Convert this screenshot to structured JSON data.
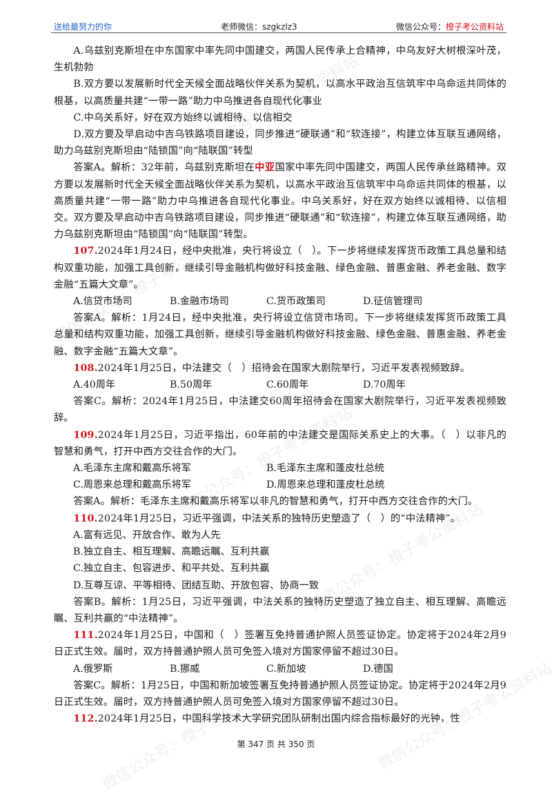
{
  "header": {
    "left": "送给最努力的你",
    "center": "老师微信：szgkzlz3",
    "right_prefix": "微信公众号：",
    "right_highlight": "橙子考公资料站"
  },
  "watermark": {
    "text1": "微信公众号：橙子考公资料站",
    "text2": "微信公众号：橙子考公资料站",
    "text3": "微信公众号：橙子考公资料站",
    "text4": "微信公众号：橙子考公资料站",
    "text5": "微信公众号：橙子考公资料站",
    "text6": "微信公众号：橙子考公资料站"
  },
  "q106": {
    "optA": "A.乌兹别克斯坦在中东国家中率先同中国建交，两国人民传承上合精神，中乌友好大树根深叶茂，生机勃勃",
    "optB": "B.双方要以发展新时代全天候全面战略伙伴关系为契机，以高水平政治互信筑牢中乌命运共同体的根基，以高质量共建“一带一路”助力中乌推进各自现代化事业",
    "optC": "C.中乌关系好，好在双方始终以诚相待、以信相交",
    "optD": "D.双方要及早启动中吉乌铁路项目建设，同步推进“硬联通”和“软连接”，构建立体互联互通网络，助力乌兹别克斯坦由“陆锁国”向“陆联国”转型",
    "ans_pre": "答案A。解析：32年前，乌兹别克斯坦在",
    "ans_red": "中亚",
    "ans_post": "国家中率先同中国建交，两国人民传承丝路精神。双方要以发展新时代全天候全面战略伙伴关系为契机，以高水平政治互信筑牢中乌命运共同体的根基，以高质量共建“一带一路”助力中乌推进各自现代化事业。中乌关系好，好在双方始终以诚相待、以信相交。双方要及早启动中吉乌铁路项目建设，同步推进“硬联通”和“软连接”，构建立体互联互通网络，助力乌兹别克斯坦由“陆锁国”向“陆联国”转型。"
  },
  "q107": {
    "num": "107.",
    "stem": "2024年1月24日，经中央批准，央行将设立（　）。下一步将继续发挥货币政策工具总量和结构双重功能，加强工具创新，继续引导金融机构做好科技金融、绿色金融、普惠金融、养老金融、数字金融“五篇大文章”。",
    "options": [
      "A.信贷市场司",
      "B.金融市场司",
      "C.货币政策司",
      "D.征信管理司"
    ],
    "answer": "答案A。解析：1月24日，经中央批准，央行将设立信贷市场司。下一步将继续发挥货币政策工具总量和结构双重功能，加强工具创新，继续引导金融机构做好科技金融、绿色金融、普惠金融、养老金融、数字金融“五篇大文章”。"
  },
  "q108": {
    "num": "108.",
    "stem": "2024年1月25日，中法建交（　）招待会在国家大剧院举行，习近平发表视频致辞。",
    "options": [
      "A.40周年",
      "B.50周年",
      "C.60周年",
      "D.70周年"
    ],
    "answer": "答案C。解析：2024年1月25日，中法建交60周年招待会在国家大剧院举行，习近平发表视频致辞。"
  },
  "q109": {
    "num": "109.",
    "stem": "2024年1月25日，习近平指出，60年前的中法建交是国际关系史上的大事。（　）以非凡的智慧和勇气，打开中西方交往合作的大门。",
    "options": [
      "A.毛泽东主席和戴高乐将军",
      "B.毛泽东主席和蓬皮杜总统",
      "C.周恩来总理和戴高乐将军",
      "D.周恩来总理和蓬皮杜总统"
    ],
    "answer": "答案A。解析：毛泽东主席和戴高乐将军以非凡的智慧和勇气，打开中西方交往合作的大门。"
  },
  "q110": {
    "num": "110.",
    "stem": "2024年1月25日，习近平强调，中法关系的独特历史塑造了（　）的“中法精神”。",
    "options": [
      "A.富有远见、开放合作、敢为人先",
      "B.独立自主、相互理解、高瞻远瞩、互利共赢",
      "C.独立自主、包容进步、和平共处、互利共赢",
      "D.互尊互谅、平等相待、团结互助、开放包容、协商一致"
    ],
    "answer": "答案B。解析：1月25日，习近平强调，中法关系的独特历史塑造了独立自主、相互理解、高瞻远瞩、互利共赢的“中法精神”。"
  },
  "q111": {
    "num": "111.",
    "stem": "2024年1月25日，中国和（　）签署互免持普通护照人员签证协定。协定将于2024年2月9日正式生效。届时，双方持普通护照人员可免签入境对方国家停留不超过30日。",
    "options": [
      "A.俄罗斯",
      "B.挪威",
      "C.新加坡",
      "D.德国"
    ],
    "answer": "答案C。解析：1月25日，中国和新加坡签署互免持普通护照人员签证协定。协定将于2024年2月9日正式生效。届时，双方持普通护照人员可免签入境对方国家停留不超过30日。"
  },
  "q112": {
    "num": "112.",
    "stem": "2024年1月25日，中国科学技术大学研究团队研制出国内综合指标最好的光钟，性"
  },
  "footer": "第 347 页 共 350 页"
}
